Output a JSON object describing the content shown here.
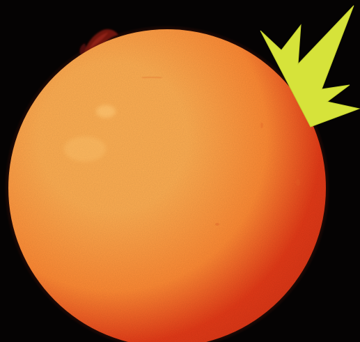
{
  "scene": {
    "subject": "sun-disk",
    "colors": {
      "background": "#050303",
      "sun_core": "#ffb054",
      "sun_mid": "#ff8a34",
      "sun_limb": "#e43a17",
      "sun_edge": "#c51a12",
      "prominence": "#7a1a12",
      "flare_burst": "#d6e33a"
    },
    "features": [
      "prominence",
      "starburst-marker",
      "sunspots"
    ]
  }
}
